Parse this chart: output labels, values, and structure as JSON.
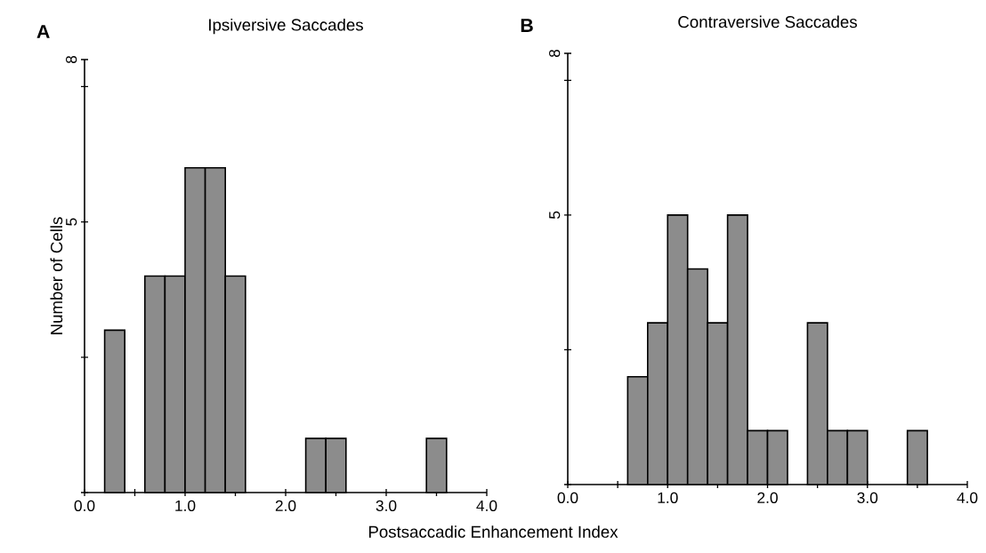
{
  "chart_data": [
    {
      "type": "histogram",
      "title": "Ipsiversive Saccades",
      "ylabel": "Number of Cells",
      "xlabel": "Postsaccadic Enhancement Index",
      "bins": [
        0.0,
        0.2,
        0.4,
        0.6,
        0.8,
        1.0,
        1.2,
        1.4,
        1.6,
        1.8,
        2.0,
        2.2,
        2.4,
        2.6,
        2.8,
        3.0,
        3.2,
        3.4,
        3.6,
        3.8,
        4.0
      ],
      "values": [
        0,
        3,
        0,
        4,
        4,
        6,
        6,
        4,
        0,
        0,
        0,
        1,
        1,
        0,
        0,
        0,
        0,
        1,
        0,
        0
      ],
      "color": "#8c8c8c",
      "xlim": [
        0,
        4
      ],
      "ylim": [
        0,
        8
      ],
      "xticks": [
        {
          "value": 0,
          "label": "0.0"
        },
        {
          "value": 0.5,
          "label": null
        },
        {
          "value": 1,
          "label": "1.0"
        },
        {
          "value": 1.5,
          "label": null
        },
        {
          "value": 2,
          "label": "2.0"
        },
        {
          "value": 2.5,
          "label": null
        },
        {
          "value": 3,
          "label": "3.0"
        },
        {
          "value": 3.5,
          "label": null
        },
        {
          "value": 4,
          "label": "4.0"
        }
      ],
      "yticks": [
        {
          "value": 0,
          "label": null
        },
        {
          "value": 2.5,
          "label": null
        },
        5,
        {
          "value": 7.5,
          "label": null
        },
        8
      ],
      "annotations": [
        "A"
      ]
    },
    {
      "type": "histogram",
      "title": "Contraversive Saccades",
      "bins": [
        0.0,
        0.2,
        0.4,
        0.6,
        0.8,
        1.0,
        1.2,
        1.4,
        1.6,
        1.8,
        2.0,
        2.2,
        2.4,
        2.6,
        2.8,
        3.0,
        3.2,
        3.4,
        3.6,
        3.8,
        4.0
      ],
      "values": [
        0,
        0,
        0,
        2,
        3,
        5,
        4,
        3,
        5,
        1,
        1,
        0,
        3,
        1,
        1,
        0,
        0,
        1,
        0,
        0
      ],
      "color": "#8c8c8c",
      "xlim": [
        0,
        4
      ],
      "ylim": [
        0,
        8
      ],
      "xticks": [
        {
          "value": 0,
          "label": "0.0"
        },
        {
          "value": 0.5,
          "label": null
        },
        {
          "value": 1,
          "label": "1.0"
        },
        {
          "value": 1.5,
          "label": null
        },
        {
          "value": 2,
          "label": "2.0"
        },
        {
          "value": 2.5,
          "label": null
        },
        {
          "value": 3,
          "label": "3.0"
        },
        {
          "value": 3.5,
          "label": null
        },
        {
          "value": 4,
          "label": "4.0"
        }
      ],
      "yticks": [
        {
          "value": 0,
          "label": null
        },
        {
          "value": 2.5,
          "label": null
        },
        5,
        {
          "value": 7.5,
          "label": null
        },
        8
      ],
      "annotations": [
        "B"
      ]
    }
  ]
}
